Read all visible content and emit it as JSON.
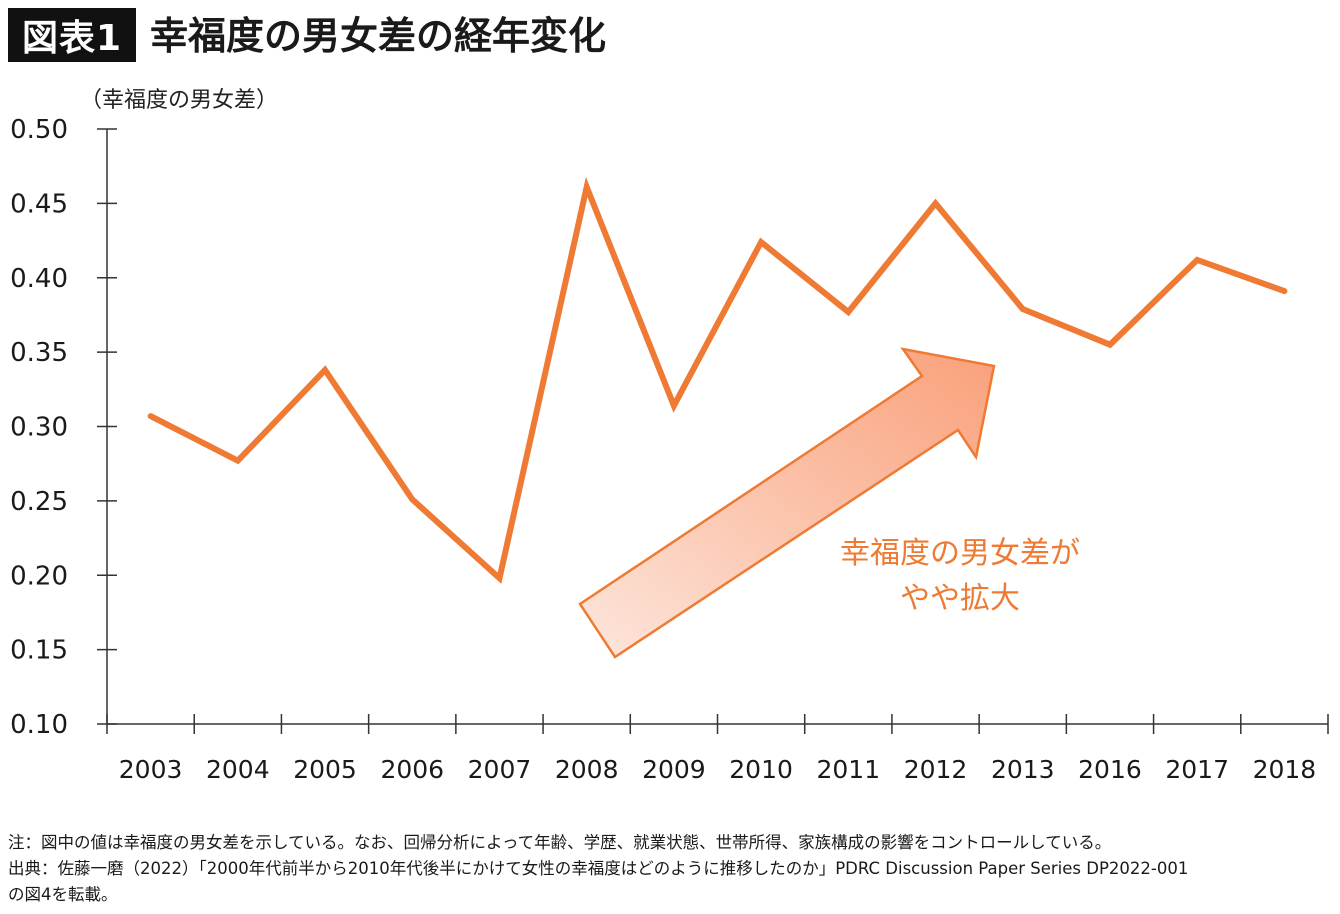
{
  "header": {
    "badge": "図表1",
    "title": "幸福度の男女差の経年変化"
  },
  "chart_data": {
    "type": "line",
    "title": "幸福度の男女差の経年変化",
    "ylabel": "（幸福度の男女差）",
    "xlabel": "",
    "ylim": [
      0.1,
      0.5
    ],
    "y_ticks": [
      "0.50",
      "0.45",
      "0.40",
      "0.35",
      "0.30",
      "0.25",
      "0.20",
      "0.15",
      "0.10"
    ],
    "categories": [
      "2003",
      "2004",
      "2005",
      "2006",
      "2007",
      "2008",
      "2009",
      "2010",
      "2011",
      "2012",
      "2013",
      "2016",
      "2017",
      "2018"
    ],
    "series": [
      {
        "values": [
          0.307,
          0.277,
          0.338,
          0.251,
          0.198,
          0.461,
          0.314,
          0.424,
          0.377,
          0.45,
          0.379,
          0.355,
          0.412,
          0.391
        ]
      }
    ],
    "line_color": "#ee7a33",
    "grid": false,
    "annotation": {
      "lines": [
        "幸福度の男女差が",
        "やや拡大"
      ],
      "color": "#ee7a33",
      "arrow": "upward trend arrow"
    }
  },
  "footnotes": [
    "注：図中の値は幸福度の男女差を示している。なお、回帰分析によって年齢、学歴、就業状態、世帯所得、家族構成の影響をコントロールしている。",
    "出典：佐藤一磨（2022）「2000年代前半から2010年代後半にかけて女性の幸福度はどのように推移したのか」PDRC Discussion Paper Series DP2022-001",
    "の図4を転載。"
  ]
}
